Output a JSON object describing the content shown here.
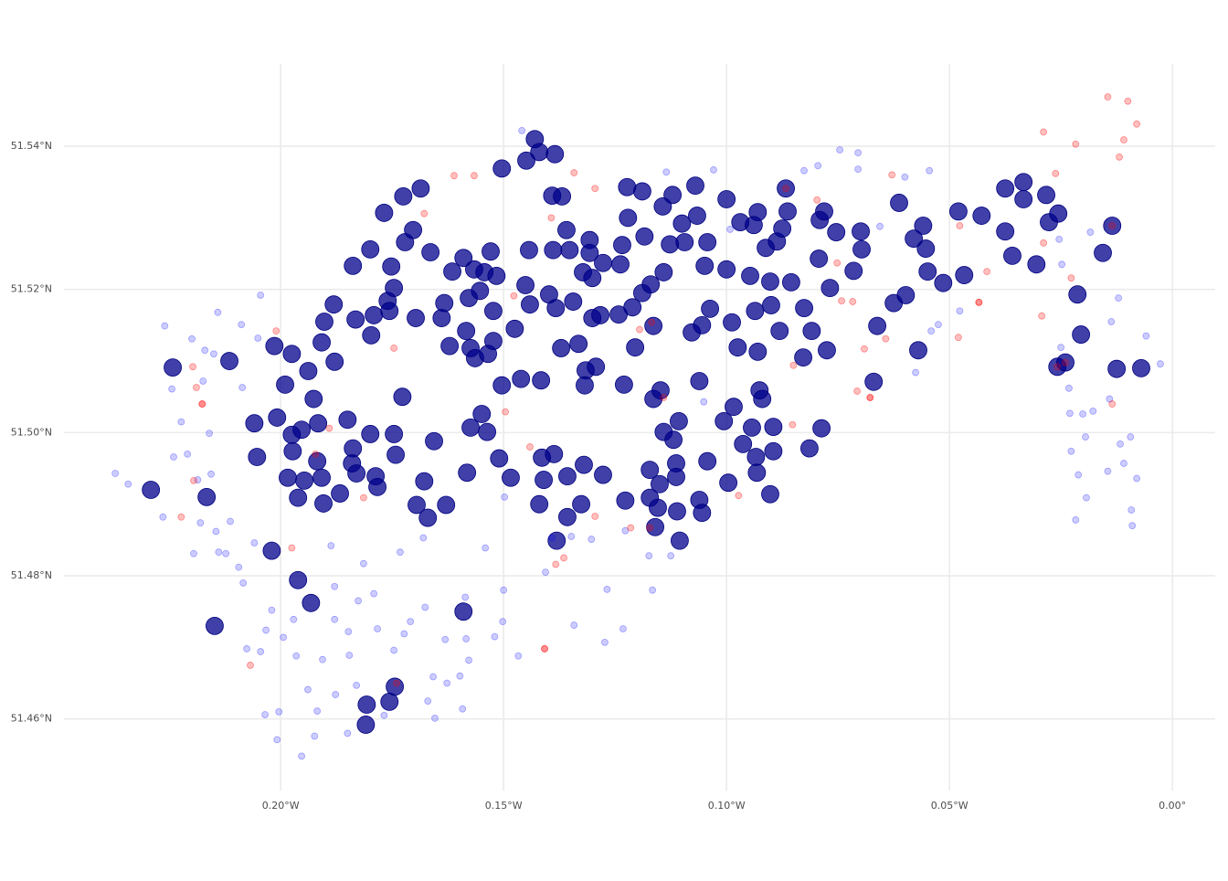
{
  "chart_data": {
    "type": "scatter",
    "grid": true,
    "xlim": [
      -0.2486,
      0.0096
    ],
    "ylim": [
      51.45,
      51.5515
    ],
    "xticks": [
      {
        "value": -0.2,
        "label": "0.20°W"
      },
      {
        "value": -0.15,
        "label": "0.15°W"
      },
      {
        "value": -0.1,
        "label": "0.10°W"
      },
      {
        "value": -0.05,
        "label": "0.05°W"
      },
      {
        "value": 0,
        "label": "0.00°"
      }
    ],
    "yticks": [
      {
        "value": 51.46,
        "label": "51.46°N"
      },
      {
        "value": 51.48,
        "label": "51.48°N"
      },
      {
        "value": 51.5,
        "label": "51.50°N"
      },
      {
        "value": 51.52,
        "label": "51.52°N"
      },
      {
        "value": 51.54,
        "label": "51.54°N"
      }
    ],
    "series": [
      {
        "color": "#00008b",
        "opacity": 0.75,
        "stroke": "#000080",
        "marker_size": 9.5,
        "x": [
          -0.2242,
          -0.2291,
          -0.2166,
          -0.2148,
          -0.2115,
          -0.2059,
          -0.2053,
          -0.202,
          -0.2014,
          -0.2008,
          -0.199,
          -0.1975,
          -0.1938,
          -0.1975,
          -0.1973,
          -0.1984,
          -0.1961,
          -0.1947,
          -0.1953,
          -0.1961,
          -0.1932,
          -0.1926,
          -0.1916,
          -0.1918,
          -0.1908,
          -0.1904,
          -0.1908,
          -0.1902,
          -0.1879,
          -0.1881,
          -0.1867,
          -0.185,
          -0.184,
          -0.1838,
          -0.1832,
          -0.1838,
          -0.183,
          -0.1799,
          -0.1797,
          -0.1791,
          -0.1787,
          -0.1783,
          -0.1799,
          -0.1768,
          -0.176,
          -0.1756,
          -0.1752,
          -0.1746,
          -0.1746,
          -0.1742,
          -0.1727,
          -0.1725,
          -0.1721,
          -0.1703,
          -0.1697,
          -0.1695,
          -0.1686,
          -0.1678,
          -0.167,
          -0.1664,
          -0.1656,
          -0.1639,
          -0.1633,
          -0.1629,
          -0.1621,
          -0.1615,
          -0.159,
          -0.159,
          -0.1584,
          -0.1582,
          -0.1578,
          -0.1574,
          -0.1574,
          -0.1566,
          -0.1564,
          -0.1553,
          -0.1549,
          -0.1543,
          -0.1537,
          -0.1535,
          -0.1529,
          -0.1523,
          -0.1523,
          -0.1516,
          -0.151,
          -0.1504,
          -0.1504,
          -0.1484,
          -0.1475,
          -0.1461,
          -0.1451,
          -0.1443,
          -0.1441,
          -0.1449,
          -0.143,
          -0.142,
          -0.142,
          -0.1414,
          -0.1416,
          -0.141,
          -0.1398,
          -0.1389,
          -0.1385,
          -0.1387,
          -0.1383,
          -0.1381,
          -0.1391,
          -0.1369,
          -0.1371,
          -0.1359,
          -0.1357,
          -0.1352,
          -0.1344,
          -0.1357,
          -0.1332,
          -0.1326,
          -0.132,
          -0.1322,
          -0.1316,
          -0.1307,
          -0.1307,
          -0.1318,
          -0.1301,
          -0.1301,
          -0.1293,
          -0.1277,
          -0.1277,
          -0.1283,
          -0.1242,
          -0.1238,
          -0.1234,
          -0.1227,
          -0.1223,
          -0.1221,
          -0.123,
          -0.1211,
          -0.1205,
          -0.1189,
          -0.1189,
          -0.1184,
          -0.1172,
          -0.1172,
          -0.1164,
          -0.1164,
          -0.116,
          -0.117,
          -0.1154,
          -0.1143,
          -0.1141,
          -0.115,
          -0.1148,
          -0.1141,
          -0.1127,
          -0.1119,
          -0.1121,
          -0.1113,
          -0.1113,
          -0.1107,
          -0.1111,
          -0.1105,
          -0.11,
          -0.1094,
          -0.1078,
          -0.1066,
          -0.107,
          -0.1061,
          -0.1055,
          -0.1061,
          -0.1055,
          -0.1049,
          -0.1043,
          -0.1037,
          -0.1043,
          -0.1006,
          -0.0996,
          -0.1,
          -0.1,
          -0.0988,
          -0.0984,
          -0.0975,
          -0.0969,
          -0.0963,
          -0.0947,
          -0.0936,
          -0.0939,
          -0.0932,
          -0.0943,
          -0.093,
          -0.0934,
          -0.093,
          -0.0926,
          -0.092,
          -0.0912,
          -0.0902,
          -0.0902,
          -0.09,
          -0.0895,
          -0.0895,
          -0.0887,
          -0.0875,
          -0.0881,
          -0.0867,
          -0.0863,
          -0.0855,
          -0.0828,
          -0.0826,
          -0.0814,
          -0.0809,
          -0.0793,
          -0.0791,
          -0.0787,
          -0.0781,
          -0.0775,
          -0.0768,
          -0.0754,
          -0.0715,
          -0.0699,
          -0.0697,
          -0.067,
          -0.0662,
          -0.0625,
          -0.0613,
          -0.0598,
          -0.058,
          -0.057,
          -0.0559,
          -0.0553,
          -0.0549,
          -0.0514,
          -0.048,
          -0.0467,
          -0.0428,
          -0.0375,
          -0.0375,
          -0.0359,
          -0.0334,
          -0.0334,
          -0.0305,
          -0.0283,
          -0.0277,
          -0.0256,
          -0.0258,
          -0.024,
          -0.0213,
          -0.0205,
          -0.0156,
          -0.0135,
          -0.0125,
          -0.007,
          -0.1807,
          -0.1809,
          -0.1756,
          -0.1744
        ],
        "values": [
          51.5091,
          51.492,
          51.491,
          51.473,
          51.51,
          51.5013,
          51.4966,
          51.4835,
          51.5121,
          51.5021,
          51.5067,
          51.511,
          51.5086,
          51.4997,
          51.4974,
          51.4937,
          51.4909,
          51.4933,
          51.5004,
          51.4794,
          51.4762,
          51.5047,
          51.5013,
          51.496,
          51.4937,
          51.4901,
          51.5126,
          51.5155,
          51.5099,
          51.5179,
          51.4915,
          51.5018,
          51.4957,
          51.5233,
          51.5158,
          51.4978,
          51.4943,
          51.5256,
          51.5136,
          51.5164,
          51.4939,
          51.4924,
          51.4998,
          51.5307,
          51.5184,
          51.517,
          51.5232,
          51.4998,
          51.5202,
          51.4969,
          51.505,
          51.533,
          51.5266,
          51.5283,
          51.516,
          51.4899,
          51.5341,
          51.4932,
          51.4881,
          51.5252,
          51.4988,
          51.516,
          51.5181,
          51.4899,
          51.5121,
          51.5225,
          51.5244,
          51.475,
          51.5142,
          51.4944,
          51.5188,
          51.5118,
          51.5007,
          51.5228,
          51.5104,
          51.5198,
          51.5026,
          51.5224,
          51.5001,
          51.511,
          51.5253,
          51.5128,
          51.517,
          51.5219,
          51.4964,
          51.5066,
          51.5369,
          51.4937,
          51.5145,
          51.5075,
          51.5206,
          51.5255,
          51.5179,
          51.538,
          51.541,
          51.5392,
          51.49,
          51.4965,
          51.5073,
          51.4934,
          51.5193,
          51.5255,
          51.5389,
          51.497,
          51.5174,
          51.4849,
          51.5331,
          51.533,
          51.5118,
          51.5283,
          51.4939,
          51.5255,
          51.5183,
          51.4882,
          51.5124,
          51.49,
          51.4955,
          51.5224,
          51.5087,
          51.5269,
          51.5251,
          51.5066,
          51.5216,
          51.516,
          51.5092,
          51.4941,
          51.5237,
          51.5164,
          51.5165,
          51.5235,
          51.5262,
          51.4905,
          51.5343,
          51.53,
          51.5067,
          51.5175,
          51.5119,
          51.5337,
          51.5195,
          51.5274,
          51.4948,
          51.4909,
          51.5047,
          51.5149,
          51.4868,
          51.5207,
          51.4895,
          51.5316,
          51.5224,
          51.4928,
          51.5059,
          51.5001,
          51.5263,
          51.499,
          51.5332,
          51.4957,
          51.4938,
          51.5016,
          51.489,
          51.4849,
          51.5292,
          51.5266,
          51.514,
          51.5303,
          51.5345,
          51.5072,
          51.515,
          51.4906,
          51.4888,
          51.5233,
          51.5266,
          51.5173,
          51.496,
          51.5016,
          51.493,
          51.5326,
          51.5228,
          51.5154,
          51.5036,
          51.5119,
          51.5294,
          51.4984,
          51.5219,
          51.517,
          51.529,
          51.4944,
          51.5007,
          51.5113,
          51.4966,
          51.5308,
          51.5059,
          51.5047,
          51.5258,
          51.4914,
          51.5211,
          51.5178,
          51.5008,
          51.4974,
          51.5267,
          51.5285,
          51.5142,
          51.5341,
          51.5309,
          51.521,
          51.5105,
          51.5174,
          51.4978,
          51.5142,
          51.5243,
          51.5297,
          51.5006,
          51.5309,
          51.5115,
          51.5202,
          51.528,
          51.5226,
          51.5281,
          51.5256,
          51.5071,
          51.5149,
          51.5181,
          51.5321,
          51.5192,
          51.5271,
          51.5115,
          51.5289,
          51.5257,
          51.5225,
          51.5209,
          51.5309,
          51.522,
          51.5303,
          51.5281,
          51.5341,
          51.5247,
          51.535,
          51.5326,
          51.5235,
          51.5332,
          51.5294,
          51.5306,
          51.5092,
          51.5098,
          51.5193,
          51.5137,
          51.5251,
          51.5289,
          51.5089,
          51.509,
          51.462,
          51.4592,
          51.4624,
          51.4645
        ]
      },
      {
        "color": "#0000ff",
        "opacity": 0.2,
        "stroke": "#0000ff",
        "marker_size": 3.5,
        "x": [
          -0.2371,
          -0.2342,
          -0.226,
          -0.2264,
          -0.2244,
          -0.224,
          -0.2223,
          -0.2209,
          -0.2199,
          -0.2195,
          -0.2186,
          -0.218,
          -0.2174,
          -0.217,
          -0.216,
          -0.2156,
          -0.215,
          -0.2145,
          -0.2141,
          -0.2139,
          -0.2123,
          -0.2113,
          -0.2094,
          -0.2088,
          -0.2086,
          -0.2084,
          -0.2076,
          -0.2059,
          -0.2051,
          -0.2045,
          -0.2045,
          -0.2035,
          -0.2033,
          -0.202,
          -0.2008,
          -0.2004,
          -0.1994,
          -0.1971,
          -0.1965,
          -0.1953,
          -0.1939,
          -0.1924,
          -0.1918,
          -0.1906,
          -0.1887,
          -0.1879,
          -0.1879,
          -0.1877,
          -0.185,
          -0.1848,
          -0.1846,
          -0.183,
          -0.1826,
          -0.1814,
          -0.1791,
          -0.1783,
          -0.1768,
          -0.1746,
          -0.1723,
          -0.1732,
          -0.1709,
          -0.168,
          -0.1676,
          -0.167,
          -0.1658,
          -0.1654,
          -0.1631,
          -0.1627,
          -0.1598,
          -0.1592,
          -0.1586,
          -0.1584,
          -0.1578,
          -0.1541,
          -0.152,
          -0.15,
          -0.1498,
          -0.1502,
          -0.1467,
          -0.1459,
          -0.1406,
          -0.1391,
          -0.1348,
          -0.1342,
          -0.1303,
          -0.1273,
          -0.1268,
          -0.1232,
          -0.1227,
          -0.1174,
          -0.1166,
          -0.1135,
          -0.1125,
          -0.1051,
          -0.1029,
          -0.0992,
          -0.0826,
          -0.0795,
          -0.0746,
          -0.0705,
          -0.0705,
          -0.0656,
          -0.06,
          -0.0545,
          -0.0541,
          -0.0525,
          -0.0576,
          -0.0477,
          -0.0254,
          -0.025,
          -0.0248,
          -0.0232,
          -0.023,
          -0.0227,
          -0.0211,
          -0.0201,
          -0.0195,
          -0.0193,
          -0.0184,
          -0.0178,
          -0.0145,
          -0.0141,
          -0.0137,
          -0.0121,
          -0.0117,
          -0.0109,
          -0.0094,
          -0.0092,
          -0.009,
          -0.008,
          -0.0059,
          -0.0027,
          -0.0217
        ],
        "values": [
          51.4943,
          51.4928,
          51.5149,
          51.4882,
          51.5061,
          51.4966,
          51.5015,
          51.497,
          51.5131,
          51.4831,
          51.4934,
          51.4874,
          51.5072,
          51.5115,
          51.4999,
          51.4942,
          51.511,
          51.4862,
          51.5168,
          51.4833,
          51.4831,
          51.4876,
          51.4812,
          51.5151,
          51.5063,
          51.479,
          51.4698,
          51.4846,
          51.5132,
          51.5192,
          51.4694,
          51.4606,
          51.4724,
          51.4752,
          51.4571,
          51.461,
          51.4714,
          51.4739,
          51.4688,
          51.4548,
          51.4641,
          51.4576,
          51.4611,
          51.4683,
          51.4842,
          51.4785,
          51.4739,
          51.4634,
          51.458,
          51.4722,
          51.4689,
          51.4647,
          51.4765,
          51.4817,
          51.4775,
          51.4726,
          51.4605,
          51.4696,
          51.4719,
          51.4833,
          51.4736,
          51.4853,
          51.4756,
          51.4625,
          51.4659,
          51.4601,
          51.4711,
          51.465,
          51.466,
          51.4614,
          51.477,
          51.4712,
          51.4682,
          51.4839,
          51.4715,
          51.478,
          51.491,
          51.4736,
          51.4688,
          51.5422,
          51.4805,
          51.4853,
          51.4855,
          51.4731,
          51.4851,
          51.4707,
          51.4781,
          51.4726,
          51.4863,
          51.4828,
          51.478,
          51.5364,
          51.4828,
          51.5043,
          51.5367,
          51.5284,
          51.5366,
          51.5373,
          51.5395,
          51.5391,
          51.5368,
          51.5288,
          51.5357,
          51.5366,
          51.5142,
          51.5151,
          51.5084,
          51.517,
          51.527,
          51.5119,
          51.5235,
          51.5062,
          51.5027,
          51.4974,
          51.4941,
          51.5026,
          51.4994,
          51.4909,
          51.528,
          51.503,
          51.4946,
          51.5047,
          51.5155,
          51.5188,
          51.4984,
          51.4957,
          51.4994,
          51.4892,
          51.487,
          51.4936,
          51.5135,
          51.5096,
          51.4878
        ]
      },
      {
        "color": "#ff0000",
        "opacity": 0.25,
        "stroke": "#ff0000",
        "marker_size": 3.5,
        "x": [
          -0.0145,
          -0.01,
          -0.008,
          -0.0109,
          -0.0119,
          -0.0217,
          -0.0289,
          -0.0262,
          -0.0135,
          -0.0227,
          -0.0289,
          -0.0293,
          -0.0416,
          -0.0434,
          -0.048,
          -0.0477,
          -0.0629,
          -0.0678,
          -0.0707,
          -0.0691,
          -0.0643,
          -0.0742,
          -0.085,
          -0.0852,
          -0.0973,
          -0.1172,
          -0.1215,
          -0.1295,
          -0.1365,
          -0.1383,
          -0.1408,
          -0.1441,
          -0.1975,
          -0.2068,
          -0.2195,
          -0.2189,
          -0.2197,
          -0.2223,
          -0.2176,
          -0.174,
          -0.1611,
          -0.1566,
          -0.1678,
          -0.1342,
          -0.1295,
          -0.1393,
          -0.1477,
          -0.1496,
          -0.1746,
          -0.201,
          -0.1891,
          -0.1922,
          -0.1814,
          -0.1141,
          -0.0797,
          -0.0752,
          -0.0717,
          -0.1168,
          -0.1195,
          -0.0258,
          -0.024,
          -0.0135,
          -0.0434,
          -0.0678,
          -0.1408,
          -0.2176,
          -0.0867
        ],
        "values": [
          51.5469,
          51.5463,
          51.5431,
          51.5409,
          51.5385,
          51.5403,
          51.542,
          51.5362,
          51.504,
          51.5216,
          51.5265,
          51.5163,
          51.5225,
          51.5182,
          51.5133,
          51.5289,
          51.536,
          51.5049,
          51.5058,
          51.5117,
          51.5131,
          51.5184,
          51.5094,
          51.5011,
          51.4912,
          51.4867,
          51.4867,
          51.4883,
          51.4825,
          51.4816,
          51.4698,
          51.498,
          51.4839,
          51.4675,
          51.4933,
          51.5063,
          51.5092,
          51.4882,
          51.504,
          51.465,
          51.5359,
          51.5359,
          51.5306,
          51.5363,
          51.5341,
          51.53,
          51.5191,
          51.5029,
          51.5118,
          51.5142,
          51.5006,
          51.497,
          51.4909,
          51.5049,
          51.5325,
          51.5237,
          51.5183,
          51.5154,
          51.5144,
          51.5092,
          51.5098,
          51.5289,
          51.5182,
          51.5049,
          51.4698,
          51.504,
          51.5341
        ]
      }
    ]
  }
}
